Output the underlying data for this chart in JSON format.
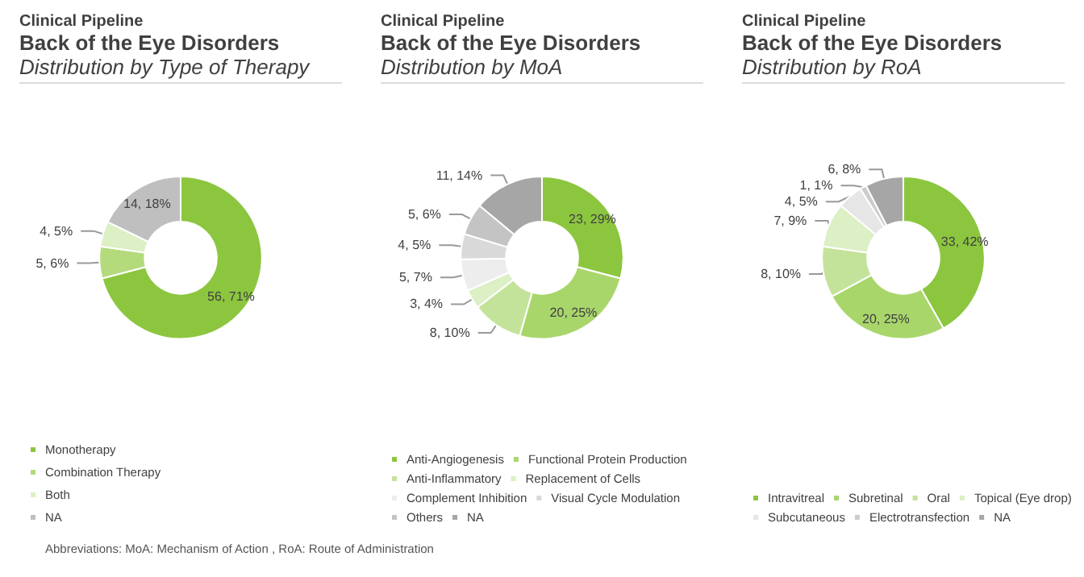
{
  "chart_data": [
    {
      "type": "donut",
      "title": "Clinical Pipeline\nBack of the Eye Disorders",
      "subtitle": "Distribution by Type of Therapy",
      "categories": [
        "Monotherapy",
        "Combination Therapy",
        "Both",
        "NA"
      ],
      "values": [
        56,
        5,
        4,
        14
      ],
      "value_labels": [
        "56, 71%",
        "5, 6%",
        "4, 5%",
        "14, 18%"
      ],
      "colors": [
        "#8cc63f",
        "#b3db7c",
        "#dcefc5",
        "#bfbfbf"
      ],
      "legend": "bottom",
      "annotations": [
        "Abbreviations: MoA: Mechanism of Action , RoA: Route of Administration"
      ]
    },
    {
      "type": "donut",
      "title": "Clinical Pipeline\nBack of the Eye Disorders",
      "subtitle": "Distribution by MoA",
      "categories": [
        "Anti-Angiogenesis",
        "Functional Protein Production",
        "Anti-Inflammatory",
        "Replacement of Cells",
        "Complement Inhibition",
        "Visual Cycle Modulation",
        "Others",
        "NA"
      ],
      "values": [
        23,
        20,
        8,
        3,
        5,
        4,
        5,
        11
      ],
      "value_labels": [
        "23, 29%",
        "20, 25%",
        "8, 10%",
        "3, 4%",
        "5, 7%",
        "4, 5%",
        "5, 6%",
        "11, 14%"
      ],
      "colors": [
        "#8cc63f",
        "#a9d66b",
        "#c3e39a",
        "#dcefc5",
        "#ededed",
        "#d9d9d9",
        "#c4c4c4",
        "#a6a6a6"
      ],
      "legend": "bottom"
    },
    {
      "type": "donut",
      "title": "Clinical Pipeline\nBack of the Eye Disorders",
      "subtitle": "Distribution by RoA",
      "categories": [
        "Intravitreal",
        "Subretinal",
        "Oral",
        "Topical (Eye drop)",
        "Subcutaneous",
        "Electrotransfection",
        "NA"
      ],
      "values": [
        33,
        20,
        8,
        7,
        4,
        1,
        6
      ],
      "value_labels": [
        "33, 42%",
        "20, 25%",
        "8, 10%",
        "7, 9%",
        "4, 5%",
        "1, 1%",
        "6, 8%"
      ],
      "colors": [
        "#8cc63f",
        "#a9d66b",
        "#c3e39a",
        "#dcefc5",
        "#e6e6e6",
        "#cccccc",
        "#a6a6a6"
      ],
      "legend": "bottom"
    }
  ]
}
